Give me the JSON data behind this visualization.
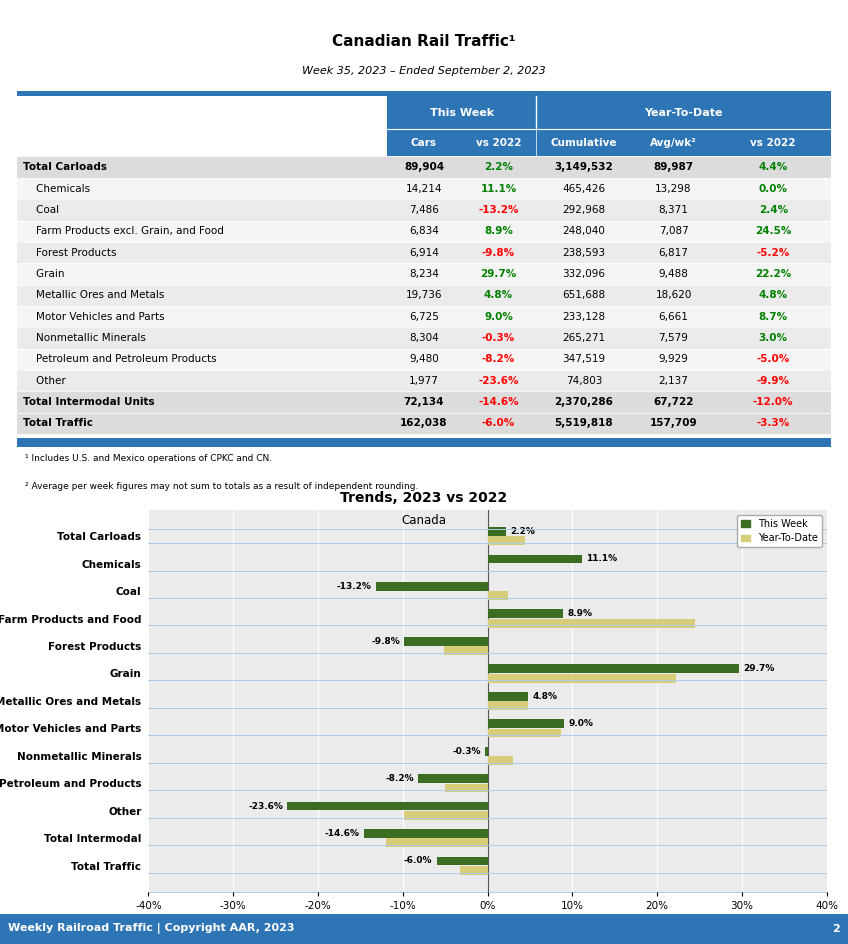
{
  "title": "Canadian Rail Traffic¹",
  "subtitle": "Week 35, 2023 – Ended September 2, 2023",
  "header_bg": "#2E75B6",
  "footnote1": "¹ Includes U.S. and Mexico operations of CPKC and CN.",
  "footnote2": "² Average per week figures may not sum to totals as a result of independent rounding.",
  "table_rows": [
    {
      "label": "Total Carloads",
      "bold": true,
      "indent": false,
      "cars": "89,904",
      "vs2022_tw": "2.2%",
      "vs2022_tw_color": "green",
      "cumulative": "3,149,532",
      "avgwk": "89,987",
      "vs2022_ytd": "4.4%",
      "vs2022_ytd_color": "green"
    },
    {
      "label": "Chemicals",
      "bold": false,
      "indent": true,
      "cars": "14,214",
      "vs2022_tw": "11.1%",
      "vs2022_tw_color": "green",
      "cumulative": "465,426",
      "avgwk": "13,298",
      "vs2022_ytd": "0.0%",
      "vs2022_ytd_color": "green"
    },
    {
      "label": "Coal",
      "bold": false,
      "indent": true,
      "cars": "7,486",
      "vs2022_tw": "-13.2%",
      "vs2022_tw_color": "red",
      "cumulative": "292,968",
      "avgwk": "8,371",
      "vs2022_ytd": "2.4%",
      "vs2022_ytd_color": "green"
    },
    {
      "label": "Farm Products excl. Grain, and Food",
      "bold": false,
      "indent": true,
      "cars": "6,834",
      "vs2022_tw": "8.9%",
      "vs2022_tw_color": "green",
      "cumulative": "248,040",
      "avgwk": "7,087",
      "vs2022_ytd": "24.5%",
      "vs2022_ytd_color": "green"
    },
    {
      "label": "Forest Products",
      "bold": false,
      "indent": true,
      "cars": "6,914",
      "vs2022_tw": "-9.8%",
      "vs2022_tw_color": "red",
      "cumulative": "238,593",
      "avgwk": "6,817",
      "vs2022_ytd": "-5.2%",
      "vs2022_ytd_color": "red"
    },
    {
      "label": "Grain",
      "bold": false,
      "indent": true,
      "cars": "8,234",
      "vs2022_tw": "29.7%",
      "vs2022_tw_color": "green",
      "cumulative": "332,096",
      "avgwk": "9,488",
      "vs2022_ytd": "22.2%",
      "vs2022_ytd_color": "green"
    },
    {
      "label": "Metallic Ores and Metals",
      "bold": false,
      "indent": true,
      "cars": "19,736",
      "vs2022_tw": "4.8%",
      "vs2022_tw_color": "green",
      "cumulative": "651,688",
      "avgwk": "18,620",
      "vs2022_ytd": "4.8%",
      "vs2022_ytd_color": "green"
    },
    {
      "label": "Motor Vehicles and Parts",
      "bold": false,
      "indent": true,
      "cars": "6,725",
      "vs2022_tw": "9.0%",
      "vs2022_tw_color": "green",
      "cumulative": "233,128",
      "avgwk": "6,661",
      "vs2022_ytd": "8.7%",
      "vs2022_ytd_color": "green"
    },
    {
      "label": "Nonmetallic Minerals",
      "bold": false,
      "indent": true,
      "cars": "8,304",
      "vs2022_tw": "-0.3%",
      "vs2022_tw_color": "red",
      "cumulative": "265,271",
      "avgwk": "7,579",
      "vs2022_ytd": "3.0%",
      "vs2022_ytd_color": "green"
    },
    {
      "label": "Petroleum and Petroleum Products",
      "bold": false,
      "indent": true,
      "cars": "9,480",
      "vs2022_tw": "-8.2%",
      "vs2022_tw_color": "red",
      "cumulative": "347,519",
      "avgwk": "9,929",
      "vs2022_ytd": "-5.0%",
      "vs2022_ytd_color": "red"
    },
    {
      "label": "Other",
      "bold": false,
      "indent": true,
      "cars": "1,977",
      "vs2022_tw": "-23.6%",
      "vs2022_tw_color": "red",
      "cumulative": "74,803",
      "avgwk": "2,137",
      "vs2022_ytd": "-9.9%",
      "vs2022_ytd_color": "red"
    },
    {
      "label": "Total Intermodal Units",
      "bold": true,
      "indent": false,
      "cars": "72,134",
      "vs2022_tw": "-14.6%",
      "vs2022_tw_color": "red",
      "cumulative": "2,370,286",
      "avgwk": "67,722",
      "vs2022_ytd": "-12.0%",
      "vs2022_ytd_color": "red"
    },
    {
      "label": "Total Traffic",
      "bold": true,
      "indent": false,
      "cars": "162,038",
      "vs2022_tw": "-6.0%",
      "vs2022_tw_color": "red",
      "cumulative": "5,519,818",
      "avgwk": "157,709",
      "vs2022_ytd": "-3.3%",
      "vs2022_ytd_color": "red"
    }
  ],
  "chart_title": "Trends, 2023 vs 2022",
  "chart_subtitle": "Canada",
  "chart_categories": [
    "Total Carloads",
    "Chemicals",
    "Coal",
    "Farm Products and Food",
    "Forest Products",
    "Grain",
    "Metallic Ores and Metals",
    "Motor Vehicles and Parts",
    "Nonmetallic Minerals",
    "Petroleum and Products",
    "Other",
    "Total Intermodal",
    "Total Traffic"
  ],
  "this_week": [
    2.2,
    11.1,
    -13.2,
    8.9,
    -9.8,
    29.7,
    4.8,
    9.0,
    -0.3,
    -8.2,
    -23.6,
    -14.6,
    -6.0
  ],
  "year_to_date": [
    4.4,
    0.0,
    2.4,
    24.5,
    -5.2,
    22.2,
    4.8,
    8.7,
    3.0,
    -5.0,
    -9.9,
    -12.0,
    -3.3
  ],
  "this_week_labels": [
    "2.2%",
    "11.1%",
    "-13.2%",
    "8.9%",
    "-9.8%",
    "29.7%",
    "4.8%",
    "9.0%",
    "-0.3%",
    "-8.2%",
    "-23.6%",
    "-14.6%",
    "-6.0%"
  ],
  "bar_green": "#3B6E22",
  "bar_yellow": "#D6CC7A",
  "xlim": [
    -40,
    40
  ],
  "xticks": [
    -40,
    -30,
    -20,
    -10,
    0,
    10,
    20,
    30,
    40
  ],
  "footer_bg": "#2E75B6",
  "footer_text": "Weekly Railroad Traffic | Copyright AAR, 2023",
  "footer_page": "2",
  "row_colors": [
    "#DCDCDC",
    "#E8E8E8",
    "#EFEFEF",
    "#E8E8E8",
    "#EFEFEF",
    "#E8E8E8",
    "#DCDCDC",
    "#E8E8E8",
    "#EFEFEF",
    "#E8E8E8",
    "#EFEFEF",
    "#E8E8E8",
    "#DCDCDC",
    "#E8E8E8",
    "#EFEFEF",
    "#DCDCDC"
  ]
}
